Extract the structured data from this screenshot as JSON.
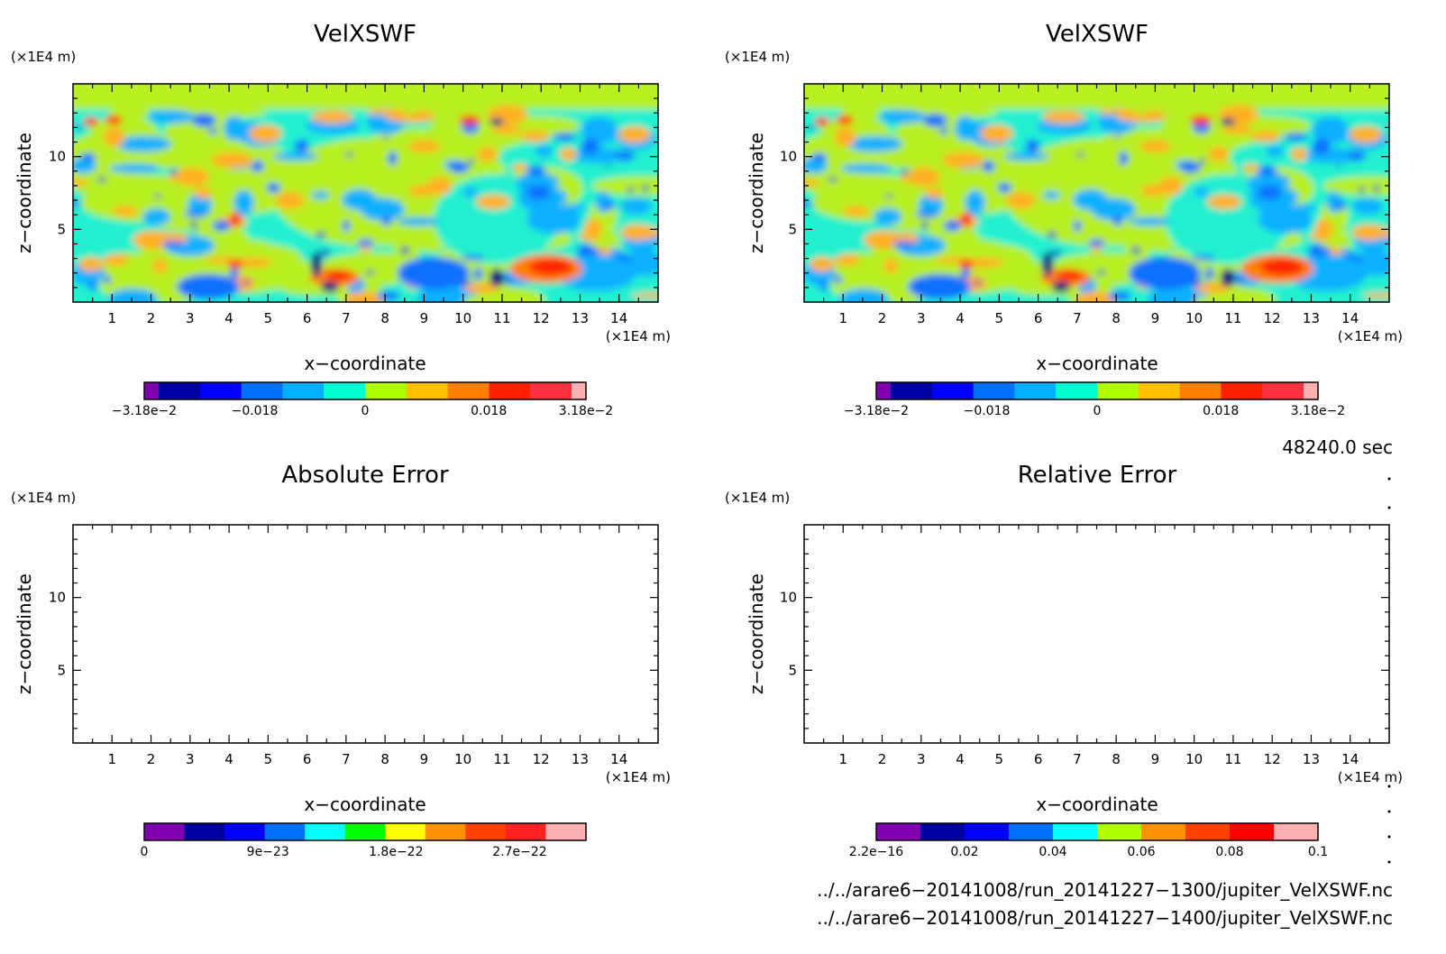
{
  "panels": [
    {
      "title": "VelXSWF",
      "unit_y": "(×1E4 m)",
      "unit_x": "(×1E4 m)",
      "xlabel": "x−coordinate",
      "ylabel": "z−coordinate",
      "colorbar": {
        "labels": [
          "−3.18e−2",
          "−0.018",
          "0",
          "0.018",
          "3.18e−2"
        ],
        "colors": [
          "#8000b0",
          "#0000a0",
          "#0000ff",
          "#0070ff",
          "#00b0ff",
          "#00ffd0",
          "#b0ff00",
          "#ffc000",
          "#ff8000",
          "#ff2000",
          "#ff3040",
          "#ffb0b0"
        ]
      }
    },
    {
      "title": "VelXSWF",
      "unit_y": "(×1E4 m)",
      "unit_x": "(×1E4 m)",
      "xlabel": "x−coordinate",
      "ylabel": "z−coordinate",
      "colorbar": {
        "labels": [
          "−3.18e−2",
          "−0.018",
          "0",
          "0.018",
          "3.18e−2"
        ],
        "colors": [
          "#8000b0",
          "#0000a0",
          "#0000ff",
          "#0070ff",
          "#00b0ff",
          "#00ffd0",
          "#b0ff00",
          "#ffc000",
          "#ff8000",
          "#ff2000",
          "#ff3040",
          "#ffb0b0"
        ]
      }
    },
    {
      "title": "Absolute Error",
      "unit_y": "(×1E4 m)",
      "unit_x": "(×1E4 m)",
      "xlabel": "x−coordinate",
      "ylabel": "z−coordinate",
      "colorbar": {
        "labels": [
          "0",
          "9e−23",
          "1.8e−22",
          "2.7e−22"
        ],
        "colors": [
          "#8000b0",
          "#0000a0",
          "#0000ff",
          "#0070ff",
          "#00ffff",
          "#00ff00",
          "#ffff00",
          "#ff9000",
          "#ff4000",
          "#ff2020",
          "#ffb0b0"
        ]
      }
    },
    {
      "title": "Relative Error",
      "unit_y": "(×1E4 m)",
      "unit_x": "(×1E4 m)",
      "xlabel": "x−coordinate",
      "ylabel": "z−coordinate",
      "colorbar": {
        "labels": [
          "2.2e−16",
          "0.02",
          "0.04",
          "0.06",
          "0.08",
          "0.1"
        ],
        "colors": [
          "#8000b0",
          "#0000a0",
          "#0000ff",
          "#0070ff",
          "#00ffff",
          "#b0ff00",
          "#ff9000",
          "#ff4000",
          "#ff0000",
          "#ffb0b0"
        ]
      }
    }
  ],
  "time_label": "48240.0 sec",
  "files": [
    "../../arare6−20141008/run_20141227−1300/jupiter_VelXSWF.nc",
    "../../arare6−20141008/run_20141227−1400/jupiter_VelXSWF.nc"
  ],
  "chart_data": [
    {
      "type": "heatmap",
      "title": "VelXSWF",
      "xlabel": "x−coordinate",
      "ylabel": "z−coordinate",
      "x_ticks": [
        1,
        2,
        3,
        4,
        5,
        6,
        7,
        8,
        9,
        10,
        11,
        12,
        13,
        14
      ],
      "y_ticks": [
        5,
        10
      ],
      "xlim": [
        0,
        15
      ],
      "ylim": [
        0,
        15
      ],
      "color_range": [
        -0.0318,
        0.0318
      ],
      "x_unit": "(×1E4 m)",
      "y_unit": "(×1E4 m)"
    },
    {
      "type": "heatmap",
      "title": "VelXSWF",
      "xlabel": "x−coordinate",
      "ylabel": "z−coordinate",
      "x_ticks": [
        1,
        2,
        3,
        4,
        5,
        6,
        7,
        8,
        9,
        10,
        11,
        12,
        13,
        14
      ],
      "y_ticks": [
        5,
        10
      ],
      "xlim": [
        0,
        15
      ],
      "ylim": [
        0,
        15
      ],
      "color_range": [
        -0.0318,
        0.0318
      ],
      "x_unit": "(×1E4 m)",
      "y_unit": "(×1E4 m)"
    },
    {
      "type": "heatmap",
      "title": "Absolute Error",
      "xlabel": "x−coordinate",
      "ylabel": "z−coordinate",
      "x_ticks": [
        1,
        2,
        3,
        4,
        5,
        6,
        7,
        8,
        9,
        10,
        11,
        12,
        13,
        14
      ],
      "y_ticks": [
        5,
        10
      ],
      "xlim": [
        0,
        15
      ],
      "ylim": [
        0,
        15
      ],
      "color_range": [
        0,
        3e-22
      ],
      "x_unit": "(×1E4 m)",
      "y_unit": "(×1E4 m)"
    },
    {
      "type": "heatmap",
      "title": "Relative Error",
      "xlabel": "x−coordinate",
      "ylabel": "z−coordinate",
      "x_ticks": [
        1,
        2,
        3,
        4,
        5,
        6,
        7,
        8,
        9,
        10,
        11,
        12,
        13,
        14
      ],
      "y_ticks": [
        5,
        10
      ],
      "xlim": [
        0,
        15
      ],
      "ylim": [
        0,
        15
      ],
      "color_range": [
        2.2e-16,
        0.1
      ],
      "x_unit": "(×1E4 m)",
      "y_unit": "(×1E4 m)"
    }
  ]
}
